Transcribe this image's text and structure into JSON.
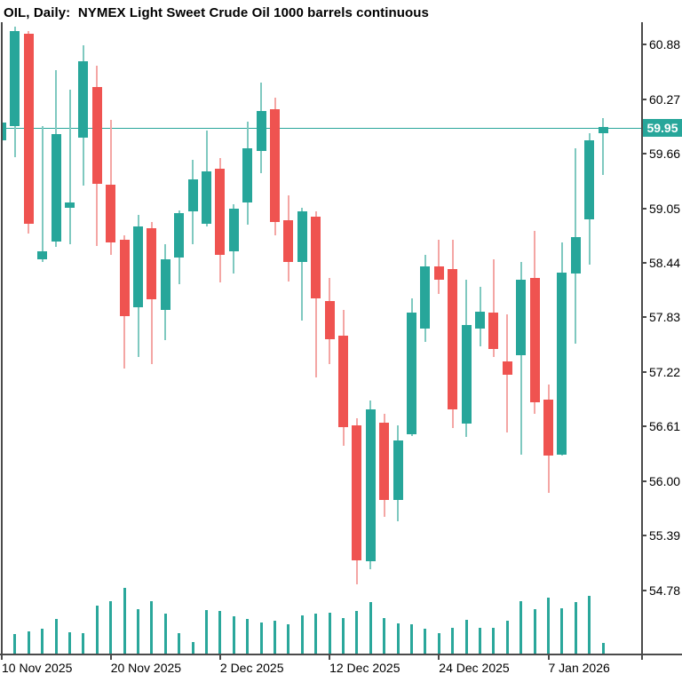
{
  "title": "OIL, Daily:  NYMEX Light Sweet Crude Oil 1000 barrels continuous",
  "symbol": "OIL",
  "timeframe": "Daily",
  "price_scale": {
    "ticks": [
      "60.88",
      "60.27",
      "59.66",
      "59.05",
      "58.44",
      "57.83",
      "57.22",
      "56.61",
      "56.00",
      "55.39",
      "54.78"
    ],
    "current_price_label": "59.95"
  },
  "time_scale": {
    "labels": [
      {
        "text": "10 Nov 2025",
        "candle_index": 0
      },
      {
        "text": "20 Nov 2025",
        "candle_index": 8
      },
      {
        "text": "2 Dec 2025",
        "candle_index": 16
      },
      {
        "text": "12 Dec 2025",
        "candle_index": 24
      },
      {
        "text": "24 Dec 2025",
        "candle_index": 32
      },
      {
        "text": "7 Jan 2026",
        "candle_index": 40
      }
    ]
  },
  "chart_data": {
    "type": "candlestick",
    "title": "OIL, Daily:  NYMEX Light Sweet Crude Oil 1000 barrels continuous",
    "y_axis": {
      "range": [
        54.5,
        61.2
      ],
      "tick_step": 0.61,
      "grid": false,
      "side": "right"
    },
    "current_price": 59.95,
    "colors": {
      "up_body": "#27a69a",
      "up_wick": "#7fc9c0",
      "down_body": "#ef5350",
      "down_wick": "#f4a6a4",
      "volume": "#2aa79b",
      "price_line": "#27a69a",
      "price_flag_bg": "#27a69a",
      "price_flag_text": "#ffffff",
      "axis": "#4a4a4a",
      "text": "#000000",
      "background": "#ffffff"
    },
    "volume_note": "relative height units as drawn, no numeric axis shown",
    "candles": [
      {
        "date": "2025-11-10",
        "o": 59.81,
        "h": 60.04,
        "l": 59.77,
        "c": 60.01,
        "vol": 15
      },
      {
        "date": "2025-11-11",
        "o": 59.97,
        "h": 61.08,
        "l": 59.62,
        "c": 61.03,
        "vol": 22
      },
      {
        "date": "2025-11-12",
        "o": 61.0,
        "h": 61.03,
        "l": 58.77,
        "c": 58.88,
        "vol": 25
      },
      {
        "date": "2025-11-13",
        "o": 58.48,
        "h": 59.97,
        "l": 58.45,
        "c": 58.57,
        "vol": 28
      },
      {
        "date": "2025-11-14",
        "o": 58.68,
        "h": 60.6,
        "l": 58.62,
        "c": 59.88,
        "vol": 39
      },
      {
        "date": "2025-11-17",
        "o": 59.06,
        "h": 60.38,
        "l": 58.65,
        "c": 59.12,
        "vol": 24
      },
      {
        "date": "2025-11-18",
        "o": 59.84,
        "h": 60.87,
        "l": 59.3,
        "c": 60.69,
        "vol": 23
      },
      {
        "date": "2025-11-19",
        "o": 60.41,
        "h": 60.65,
        "l": 58.63,
        "c": 59.32,
        "vol": 54
      },
      {
        "date": "2025-11-20",
        "o": 59.31,
        "h": 60.04,
        "l": 58.53,
        "c": 58.67,
        "vol": 59
      },
      {
        "date": "2025-11-21",
        "o": 58.7,
        "h": 58.75,
        "l": 57.26,
        "c": 57.84,
        "vol": 74
      },
      {
        "date": "2025-11-24",
        "o": 57.94,
        "h": 58.98,
        "l": 57.39,
        "c": 58.85,
        "vol": 50
      },
      {
        "date": "2025-11-25",
        "o": 58.83,
        "h": 58.9,
        "l": 57.31,
        "c": 58.03,
        "vol": 59
      },
      {
        "date": "2025-11-26",
        "o": 57.91,
        "h": 58.65,
        "l": 57.58,
        "c": 58.48,
        "vol": 45
      },
      {
        "date": "2025-11-27",
        "o": 58.5,
        "h": 59.03,
        "l": 58.2,
        "c": 59.0,
        "vol": 23
      },
      {
        "date": "2025-11-28",
        "o": 59.02,
        "h": 59.59,
        "l": 58.65,
        "c": 59.37,
        "vol": 13
      },
      {
        "date": "2025-12-01",
        "o": 58.88,
        "h": 59.92,
        "l": 58.85,
        "c": 59.46,
        "vol": 49
      },
      {
        "date": "2025-12-02",
        "o": 59.49,
        "h": 59.61,
        "l": 58.22,
        "c": 58.53,
        "vol": 48
      },
      {
        "date": "2025-12-03",
        "o": 58.57,
        "h": 59.1,
        "l": 58.32,
        "c": 59.05,
        "vol": 42
      },
      {
        "date": "2025-12-04",
        "o": 59.12,
        "h": 60.02,
        "l": 58.87,
        "c": 59.72,
        "vol": 39
      },
      {
        "date": "2025-12-05",
        "o": 59.69,
        "h": 60.46,
        "l": 59.44,
        "c": 60.14,
        "vol": 35
      },
      {
        "date": "2025-12-08",
        "o": 60.16,
        "h": 60.29,
        "l": 58.75,
        "c": 58.9,
        "vol": 37
      },
      {
        "date": "2025-12-09",
        "o": 58.92,
        "h": 59.2,
        "l": 58.23,
        "c": 58.45,
        "vol": 33
      },
      {
        "date": "2025-12-10",
        "o": 58.45,
        "h": 59.06,
        "l": 57.79,
        "c": 59.02,
        "vol": 43
      },
      {
        "date": "2025-12-11",
        "o": 58.96,
        "h": 59.02,
        "l": 57.16,
        "c": 58.04,
        "vol": 45
      },
      {
        "date": "2025-12-12",
        "o": 58.01,
        "h": 58.27,
        "l": 57.31,
        "c": 57.59,
        "vol": 46
      },
      {
        "date": "2025-12-15",
        "o": 57.63,
        "h": 57.91,
        "l": 56.39,
        "c": 56.6,
        "vol": 40
      },
      {
        "date": "2025-12-16",
        "o": 56.62,
        "h": 56.7,
        "l": 54.85,
        "c": 55.11,
        "vol": 48
      },
      {
        "date": "2025-12-17",
        "o": 55.1,
        "h": 56.9,
        "l": 55.01,
        "c": 56.8,
        "vol": 58
      },
      {
        "date": "2025-12-18",
        "o": 56.65,
        "h": 56.75,
        "l": 55.6,
        "c": 55.79,
        "vol": 40
      },
      {
        "date": "2025-12-19",
        "o": 55.79,
        "h": 56.62,
        "l": 55.55,
        "c": 56.45,
        "vol": 34
      },
      {
        "date": "2025-12-22",
        "o": 56.52,
        "h": 58.04,
        "l": 56.5,
        "c": 57.88,
        "vol": 33
      },
      {
        "date": "2025-12-23",
        "o": 57.71,
        "h": 58.53,
        "l": 57.56,
        "c": 58.4,
        "vol": 28
      },
      {
        "date": "2025-12-24",
        "o": 58.4,
        "h": 58.7,
        "l": 58.09,
        "c": 58.25,
        "vol": 23
      },
      {
        "date": "2025-12-26",
        "o": 58.37,
        "h": 58.7,
        "l": 56.59,
        "c": 56.8,
        "vol": 29
      },
      {
        "date": "2025-12-29",
        "o": 56.64,
        "h": 58.25,
        "l": 56.49,
        "c": 57.75,
        "vol": 38
      },
      {
        "date": "2025-12-30",
        "o": 57.71,
        "h": 58.17,
        "l": 57.51,
        "c": 57.89,
        "vol": 29
      },
      {
        "date": "2025-12-31",
        "o": 57.88,
        "h": 58.48,
        "l": 57.39,
        "c": 57.48,
        "vol": 29
      },
      {
        "date": "2026-01-02",
        "o": 57.34,
        "h": 57.86,
        "l": 56.54,
        "c": 57.19,
        "vol": 37
      },
      {
        "date": "2026-01-05",
        "o": 57.41,
        "h": 58.45,
        "l": 56.3,
        "c": 58.25,
        "vol": 59
      },
      {
        "date": "2026-01-06",
        "o": 58.27,
        "h": 58.8,
        "l": 56.75,
        "c": 56.88,
        "vol": 50
      },
      {
        "date": "2026-01-07",
        "o": 56.91,
        "h": 57.08,
        "l": 55.87,
        "c": 56.29,
        "vol": 63
      },
      {
        "date": "2026-01-08",
        "o": 56.3,
        "h": 58.67,
        "l": 56.29,
        "c": 58.33,
        "vol": 51
      },
      {
        "date": "2026-01-09",
        "o": 58.32,
        "h": 59.72,
        "l": 57.54,
        "c": 58.73,
        "vol": 58
      },
      {
        "date": "2026-01-12",
        "o": 58.93,
        "h": 59.89,
        "l": 58.42,
        "c": 59.81,
        "vol": 65
      },
      {
        "date": "2026-01-13",
        "o": 59.89,
        "h": 60.06,
        "l": 59.42,
        "c": 59.96,
        "vol": 12
      }
    ]
  }
}
